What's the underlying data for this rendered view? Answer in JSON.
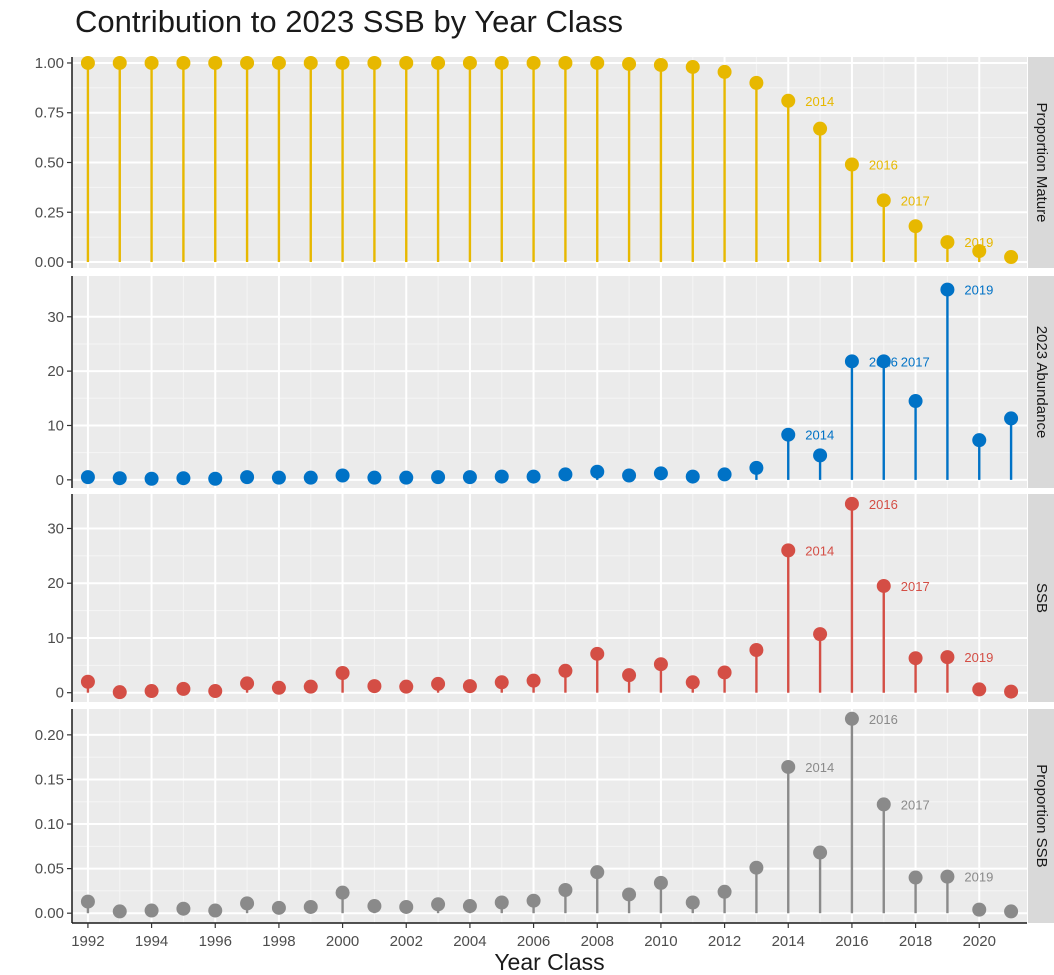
{
  "chart_data": {
    "type": "lollipop",
    "title": "Contribution to 2023 SSB by Year Class",
    "xlabel": "Year Class",
    "x": [
      1992,
      1993,
      1994,
      1995,
      1996,
      1997,
      1998,
      1999,
      2000,
      2001,
      2002,
      2003,
      2004,
      2005,
      2006,
      2007,
      2008,
      2009,
      2010,
      2011,
      2012,
      2013,
      2014,
      2015,
      2016,
      2017,
      2018,
      2019,
      2020,
      2021
    ],
    "x_ticks": [
      "1992",
      "1994",
      "1996",
      "1998",
      "2000",
      "2002",
      "2004",
      "2006",
      "2008",
      "2010",
      "2012",
      "2014",
      "2016",
      "2018",
      "2020"
    ],
    "xlim": [
      1991.5,
      2021.5
    ],
    "grid": true,
    "facets": [
      {
        "name": "Proportion Mature",
        "color": "#E7B800",
        "ylim": [
          -0.03,
          1.03
        ],
        "y_ticks": [
          "0.00",
          "0.25",
          "0.50",
          "0.75",
          "1.00"
        ],
        "values": [
          1.0,
          1.0,
          1.0,
          1.0,
          1.0,
          1.0,
          1.0,
          1.0,
          1.0,
          1.0,
          1.0,
          1.0,
          1.0,
          1.0,
          1.0,
          1.0,
          1.0,
          0.995,
          0.99,
          0.98,
          0.955,
          0.9,
          0.81,
          0.67,
          0.49,
          0.31,
          0.18,
          0.1,
          0.055,
          0.025
        ],
        "labels": [
          {
            "year": 2014,
            "text": "2014"
          },
          {
            "year": 2016,
            "text": "2016"
          },
          {
            "year": 2017,
            "text": "2017"
          },
          {
            "year": 2019,
            "text": "2019"
          }
        ]
      },
      {
        "name": "2023 Abundance",
        "color": "#0072C6",
        "ylim": [
          -1.5,
          37.5
        ],
        "y_ticks": [
          "0",
          "10",
          "20",
          "30"
        ],
        "values": [
          0.5,
          0.3,
          0.2,
          0.3,
          0.2,
          0.5,
          0.4,
          0.4,
          0.8,
          0.4,
          0.4,
          0.5,
          0.5,
          0.6,
          0.6,
          1.0,
          1.5,
          0.8,
          1.2,
          0.6,
          1.0,
          2.2,
          8.3,
          4.5,
          21.8,
          21.8,
          14.5,
          35.0,
          7.3,
          11.3
        ],
        "labels": [
          {
            "year": 2014,
            "text": "2014"
          },
          {
            "year": 2016,
            "text": "2016"
          },
          {
            "year": 2017,
            "text": "2017"
          },
          {
            "year": 2019,
            "text": "2019"
          }
        ]
      },
      {
        "name": "SSB",
        "color": "#D44E45",
        "ylim": [
          -1.7,
          36.3
        ],
        "y_ticks": [
          "0",
          "10",
          "20",
          "30"
        ],
        "values": [
          2.0,
          0.1,
          0.3,
          0.7,
          0.3,
          1.7,
          0.9,
          1.1,
          3.6,
          1.2,
          1.1,
          1.6,
          1.2,
          1.9,
          2.2,
          4.0,
          7.1,
          3.2,
          5.2,
          1.9,
          3.7,
          7.8,
          26.0,
          10.7,
          34.5,
          19.5,
          6.3,
          6.5,
          0.6,
          0.2
        ],
        "labels": [
          {
            "year": 2014,
            "text": "2014"
          },
          {
            "year": 2016,
            "text": "2016"
          },
          {
            "year": 2017,
            "text": "2017"
          },
          {
            "year": 2019,
            "text": "2019"
          }
        ]
      },
      {
        "name": "Proportion SSB",
        "color": "#8A8A8A",
        "ylim": [
          -0.011,
          0.229
        ],
        "y_ticks": [
          "0.00",
          "0.05",
          "0.10",
          "0.15",
          "0.20"
        ],
        "values": [
          0.013,
          0.002,
          0.003,
          0.005,
          0.003,
          0.011,
          0.006,
          0.007,
          0.023,
          0.008,
          0.007,
          0.01,
          0.008,
          0.012,
          0.014,
          0.026,
          0.046,
          0.021,
          0.034,
          0.012,
          0.024,
          0.051,
          0.164,
          0.068,
          0.218,
          0.122,
          0.04,
          0.041,
          0.004,
          0.002
        ],
        "labels": [
          {
            "year": 2014,
            "text": "2014"
          },
          {
            "year": 2016,
            "text": "2016"
          },
          {
            "year": 2017,
            "text": "2017"
          },
          {
            "year": 2019,
            "text": "2019"
          }
        ]
      }
    ]
  }
}
